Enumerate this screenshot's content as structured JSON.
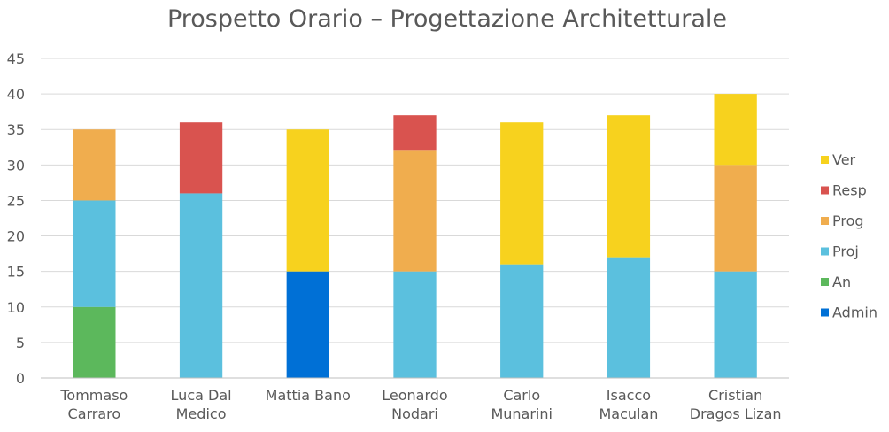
{
  "chart_data": {
    "type": "bar",
    "stacked": true,
    "title": "Prospetto Orario – Progettazione Architetturale",
    "xlabel": "",
    "ylabel": "",
    "ylim": [
      0,
      45
    ],
    "yticks": [
      0,
      5,
      10,
      15,
      20,
      25,
      30,
      35,
      40,
      45
    ],
    "grid": true,
    "legend_position": "right",
    "categories": [
      [
        "Tommaso",
        "Carraro"
      ],
      [
        "Luca Dal",
        "Medico"
      ],
      [
        "Mattia Bano"
      ],
      [
        "Leonardo",
        "Nodari"
      ],
      [
        "Carlo",
        "Munarini"
      ],
      [
        "Isacco",
        "Maculan"
      ],
      [
        "Cristian",
        "Dragos Lizan"
      ]
    ],
    "series": [
      {
        "name": "Admin",
        "color": "#0070d6",
        "values": [
          0,
          0,
          15,
          0,
          0,
          0,
          0
        ]
      },
      {
        "name": "An",
        "color": "#5cb85c",
        "values": [
          10,
          0,
          0,
          0,
          0,
          0,
          0
        ]
      },
      {
        "name": "Proj",
        "color": "#5bc0de",
        "values": [
          15,
          26,
          0,
          15,
          16,
          17,
          15
        ]
      },
      {
        "name": "Prog",
        "color": "#f0ad4e",
        "values": [
          10,
          0,
          0,
          17,
          0,
          0,
          15
        ]
      },
      {
        "name": "Resp",
        "color": "#d9534f",
        "values": [
          0,
          10,
          0,
          5,
          0,
          0,
          0
        ]
      },
      {
        "name": "Ver",
        "color": "#f7d21e",
        "values": [
          0,
          0,
          20,
          0,
          20,
          20,
          10
        ]
      }
    ]
  }
}
